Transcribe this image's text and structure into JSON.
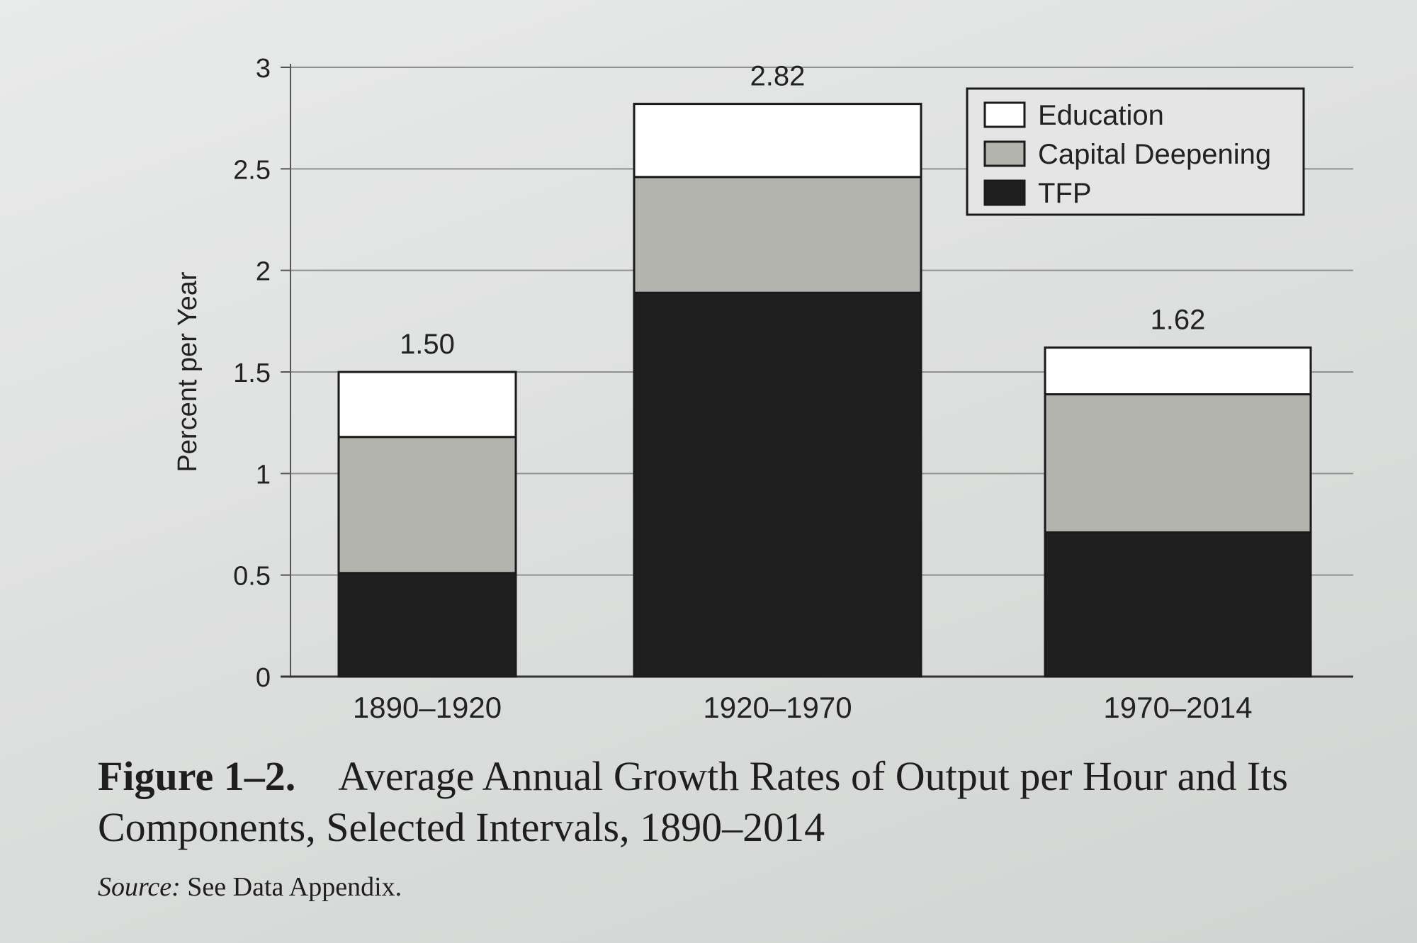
{
  "chart_data": {
    "type": "bar",
    "stacked": true,
    "categories": [
      "1890–1920",
      "1920–1970",
      "1970–2014"
    ],
    "series": [
      {
        "name": "TFP",
        "values": [
          0.51,
          1.89,
          0.71
        ],
        "color": "#1f1f1f"
      },
      {
        "name": "Capital Deepening",
        "values": [
          0.67,
          0.57,
          0.68
        ],
        "color": "#b4b4ae"
      },
      {
        "name": "Education",
        "values": [
          0.32,
          0.36,
          0.23
        ],
        "color": "#ffffff"
      }
    ],
    "totals": [
      "1.50",
      "2.82",
      "1.62"
    ],
    "ylabel": "Percent per Year",
    "ylim": [
      0,
      3
    ],
    "yticks": [
      "0",
      "0.5",
      "1",
      "1.5",
      "2",
      "2.5",
      "3"
    ],
    "grid": true,
    "legend_position": "top-right"
  },
  "caption": {
    "figure_label": "Figure 1–2.",
    "title_line1": "Average Annual Growth Rates of Output per Hour and Its",
    "title_line2": "Components, Selected Intervals, 1890–2014",
    "source_label": "Source:",
    "source_text": " See Data Appendix."
  }
}
